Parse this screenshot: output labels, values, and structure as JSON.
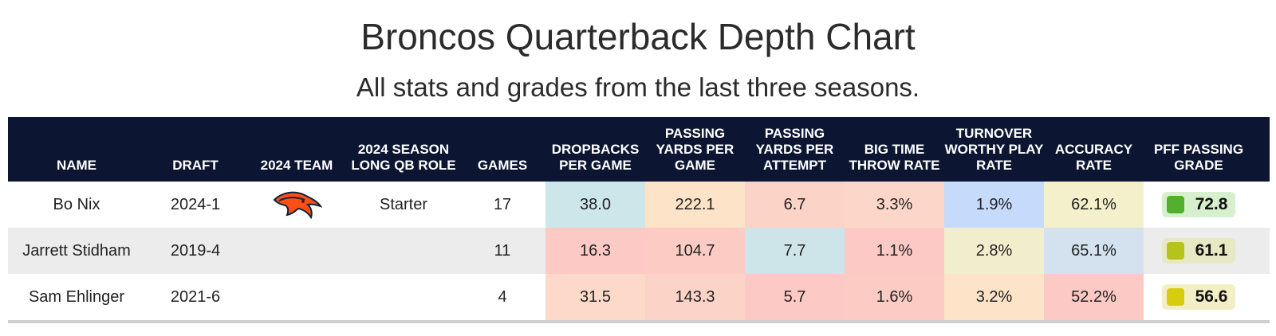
{
  "title": "Broncos Quarterback Depth Chart",
  "subtitle": "All stats and grades from the last three seasons.",
  "headers": [
    "NAME",
    "DRAFT",
    "2024 TEAM",
    "2024 SEASON LONG QB ROLE",
    "GAMES",
    "DROPBACKS PER GAME",
    "PASSING YARDS PER GAME",
    "PASSING YARDS PER ATTEMPT",
    "BIG TIME THROW RATE",
    "TURNOVER WORTHY PLAY RATE",
    "ACCURACY RATE",
    "PFF PASSING GRADE"
  ],
  "rows": [
    {
      "name": "Bo Nix",
      "draft": "2024-1",
      "team_logo": "broncos-logo-icon",
      "role": "Starter",
      "games": "17",
      "stats": [
        "38.0",
        "222.1",
        "6.7",
        "3.3%",
        "1.9%",
        "62.1%"
      ],
      "stat_colors": [
        "#cce6ea",
        "#fde3c8",
        "#fcd3c7",
        "#fcd7c9",
        "#c6dafb",
        "#f3f0cb"
      ],
      "grade": "72.8",
      "grade_dot": "#53b02e",
      "grade_bg": "#d6efcc"
    },
    {
      "name": "Jarrett Stidham",
      "draft": "2019-4",
      "team_logo": "",
      "role": "",
      "games": "11",
      "stats": [
        "16.3",
        "104.7",
        "7.7",
        "1.1%",
        "2.8%",
        "65.1%"
      ],
      "stat_colors": [
        "#fcc9c4",
        "#fcccc4",
        "#cde4e8",
        "#fcc9c4",
        "#f1eecd",
        "#d3e2ee"
      ],
      "grade": "61.1",
      "grade_dot": "#b7c31d",
      "grade_bg": "#e6e9c3"
    },
    {
      "name": "Sam Ehlinger",
      "draft": "2021-6",
      "team_logo": "",
      "role": "",
      "games": "4",
      "stats": [
        "31.5",
        "143.3",
        "5.7",
        "1.6%",
        "3.2%",
        "52.2%"
      ],
      "stat_colors": [
        "#fcd9c8",
        "#fcd3c7",
        "#fcc9c4",
        "#fccbc4",
        "#fde3c8",
        "#fcc9c4"
      ],
      "grade": "56.6",
      "grade_dot": "#d8cc10",
      "grade_bg": "#f2efc5"
    }
  ],
  "colors": {
    "header_bg": "#0c1633",
    "alt_row_bg": "#ececec"
  }
}
